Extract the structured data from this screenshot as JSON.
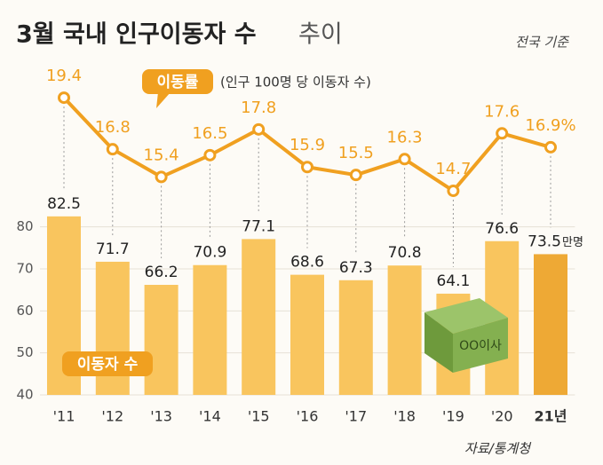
{
  "chart_data": {
    "type": "bar_line",
    "title": "3월 국내 인구이동자 수",
    "title_suffix": "추이",
    "subtitle": "전국 기준",
    "source": "자료/통계청",
    "box_label": "OO이사",
    "categories": [
      "'11",
      "'12",
      "'13",
      "'14",
      "'15",
      "'16",
      "'17",
      "'18",
      "'19",
      "'20",
      "21년"
    ],
    "series": [
      {
        "name": "이동자 수",
        "type": "bar",
        "color": "#f9c55e",
        "colors": [
          "#f9c55e",
          "#f9c55e",
          "#f9c55e",
          "#f9c55e",
          "#f9c55e",
          "#f9c55e",
          "#f9c55e",
          "#f9c55e",
          "#f9c55e",
          "#f9c55e",
          "#eea935"
        ],
        "values": [
          82.5,
          71.7,
          66.2,
          70.9,
          77.1,
          68.6,
          67.3,
          70.8,
          64.1,
          76.6,
          73.5
        ],
        "unit_label": "만명"
      },
      {
        "name": "이동률",
        "note": "(인구 100명 당 이동자 수)",
        "type": "line",
        "axis": "y2",
        "color": "#f0a020",
        "values": [
          19.4,
          16.8,
          15.4,
          16.5,
          17.8,
          15.9,
          15.5,
          16.3,
          14.7,
          17.6,
          16.9
        ],
        "value_labels": [
          "19.4",
          "16.8",
          "15.4",
          "16.5",
          "17.8",
          "15.9",
          "15.5",
          "16.3",
          "14.7",
          "17.6",
          "16.9%"
        ]
      }
    ],
    "ylim": [
      40,
      115
    ],
    "yticks": [
      40,
      50,
      60,
      70,
      80
    ],
    "y2lim": [
      4.4,
      20.3
    ],
    "grid": true
  }
}
